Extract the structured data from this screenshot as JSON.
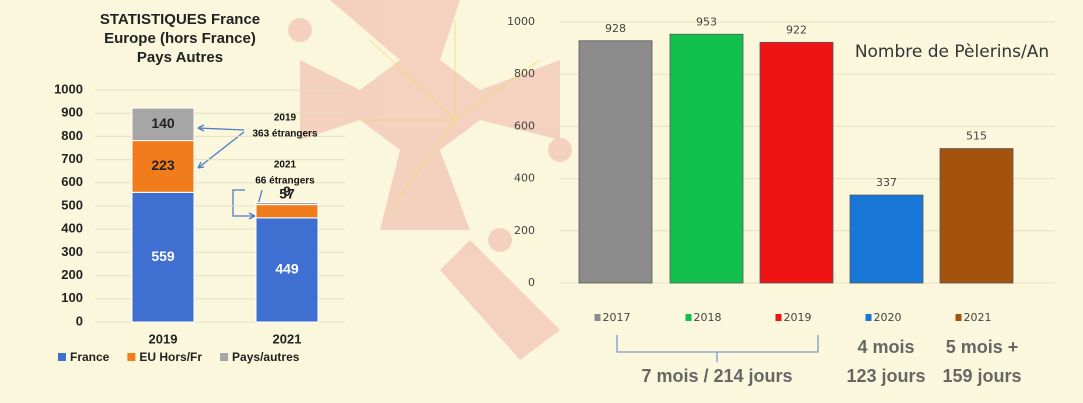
{
  "chart_data": [
    {
      "type": "stacked_bar",
      "title_lines": [
        "STATISTIQUES France",
        "Europe (hors France)",
        "Pays Autres"
      ],
      "categories": [
        "2019",
        "2021"
      ],
      "series": [
        {
          "name": "France",
          "color": "#3f6fd1",
          "values": [
            559,
            449
          ]
        },
        {
          "name": "EU Hors/Fr",
          "color": "#f07c1c",
          "values": [
            223,
            57
          ]
        },
        {
          "name": "Pays/autres",
          "color": "#a6a6a6",
          "values": [
            140,
            9
          ]
        }
      ],
      "ylim": [
        0,
        1000
      ],
      "yticks": [
        0,
        100,
        200,
        300,
        400,
        500,
        600,
        700,
        800,
        900,
        1000
      ],
      "annotations": [
        "2019",
        "363 étrangers",
        "2021",
        "66 étrangers"
      ]
    },
    {
      "type": "bar",
      "title": "Nombre de Pèlerins/An",
      "categories": [
        "2017",
        "2018",
        "2019",
        "2020",
        "2021"
      ],
      "values": [
        928,
        953,
        922,
        337,
        515
      ],
      "colors": [
        "#8c8c8c",
        "#12c04e",
        "#ee1414",
        "#1877d6",
        "#a5520f"
      ],
      "ylim": [
        0,
        1000
      ],
      "yticks": [
        0,
        200,
        400,
        600,
        800,
        1000
      ],
      "grid": true,
      "annotations": [
        "7 mois / 214 jours",
        "4 mois",
        "123 jours",
        "5 mois +",
        "159 jours"
      ]
    }
  ]
}
